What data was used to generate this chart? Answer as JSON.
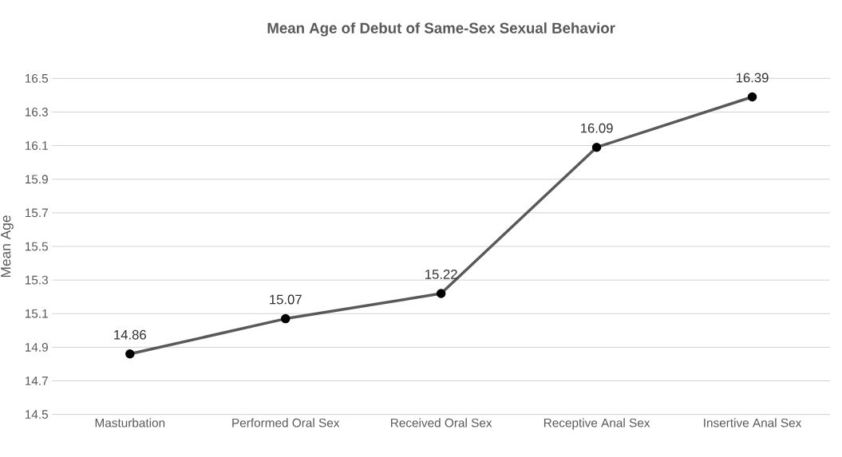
{
  "chart_data": {
    "type": "line",
    "title": "Mean Age of Debut of Same-Sex Sexual Behavior",
    "ylabel": "Mean Age",
    "categories": [
      "Masturbation",
      "Performed Oral Sex",
      "Received Oral Sex",
      "Receptive Anal Sex",
      "Insertive Anal Sex"
    ],
    "values": [
      14.86,
      15.07,
      15.22,
      16.09,
      16.39
    ],
    "color": "#595959",
    "marker": "circle",
    "data_labels": true,
    "grid": "y",
    "ylim": [
      14.5,
      16.5
    ],
    "yticks": [
      14.5,
      14.7,
      14.9,
      15.1,
      15.3,
      15.5,
      15.7,
      15.9,
      16.1,
      16.3,
      16.5
    ]
  }
}
